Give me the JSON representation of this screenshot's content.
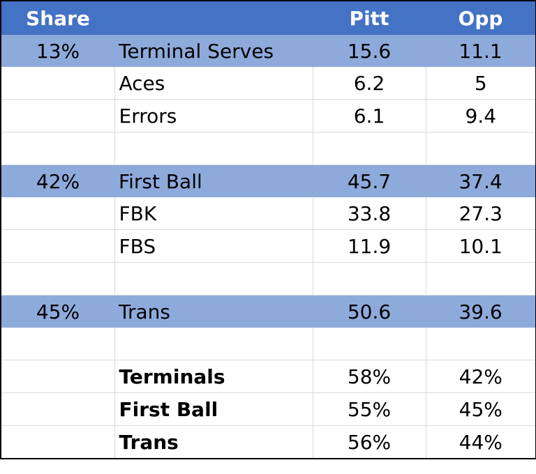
{
  "header": {
    "share": "Share",
    "label": "",
    "pitt": "Pitt",
    "opp": "Opp"
  },
  "rows": [
    {
      "share": "13%",
      "label": "Terminal Serves",
      "pitt": "15.6",
      "opp": "11.1"
    },
    {
      "share": "",
      "label": "Aces",
      "pitt": "6.2",
      "opp": "5"
    },
    {
      "share": "",
      "label": "Errors",
      "pitt": "6.1",
      "opp": "9.4"
    },
    {
      "share": "",
      "label": "",
      "pitt": "",
      "opp": ""
    },
    {
      "share": "42%",
      "label": "First Ball",
      "pitt": "45.7",
      "opp": "37.4"
    },
    {
      "share": "",
      "label": "FBK",
      "pitt": "33.8",
      "opp": "27.3"
    },
    {
      "share": "",
      "label": "FBS",
      "pitt": "11.9",
      "opp": "10.1"
    },
    {
      "share": "",
      "label": "",
      "pitt": "",
      "opp": ""
    },
    {
      "share": "45%",
      "label": "Trans",
      "pitt": "50.6",
      "opp": "39.6"
    },
    {
      "share": "",
      "label": "",
      "pitt": "",
      "opp": ""
    },
    {
      "share": "",
      "label": "Terminals",
      "pitt": "58%",
      "opp": "42%"
    },
    {
      "share": "",
      "label": "First Ball",
      "pitt": "55%",
      "opp": "45%"
    },
    {
      "share": "",
      "label": "Trans",
      "pitt": "56%",
      "opp": "44%"
    }
  ],
  "colors": {
    "header_bg": "#4472c4",
    "band_bg": "#8eaadb",
    "gridline": "#d9d9d9"
  }
}
